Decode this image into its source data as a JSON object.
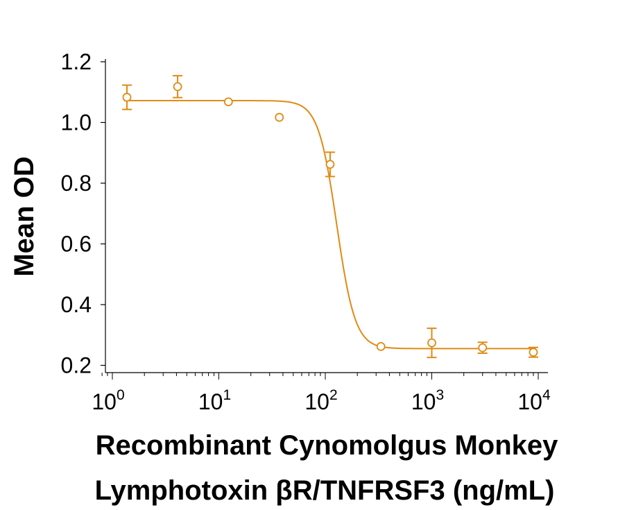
{
  "chart_data": {
    "type": "scatter",
    "xscale": "log",
    "xlim": [
      0.8,
      12000
    ],
    "ylim": [
      0.18,
      1.2
    ],
    "xticks": [
      1,
      10,
      100,
      1000,
      10000
    ],
    "xtick_labels": [
      {
        "base": "10",
        "exp": "0"
      },
      {
        "base": "10",
        "exp": "1"
      },
      {
        "base": "10",
        "exp": "2"
      },
      {
        "base": "10",
        "exp": "3"
      },
      {
        "base": "10",
        "exp": "4"
      }
    ],
    "yticks": [
      0.2,
      0.4,
      0.6,
      0.8,
      1.0,
      1.2
    ],
    "ytick_labels": [
      "0.2",
      "0.4",
      "0.6",
      "0.8",
      "1.0",
      "1.2"
    ],
    "ylabel": "Mean OD",
    "xlabel_line1": "Recombinant Cynomolgus Monkey",
    "xlabel_line2": "Lymphotoxin βR/TNFRSF3 (ng/mL)",
    "color": "#e08a12",
    "grid": false,
    "legend": "none",
    "series": [
      {
        "x": [
          1.37,
          4.1,
          12.3,
          37,
          111,
          333,
          1000,
          3000,
          9000
        ],
        "y": [
          1.083,
          1.118,
          1.068,
          1.017,
          0.862,
          0.262,
          0.274,
          0.258,
          0.243
        ],
        "err": [
          0.04,
          0.036,
          0.004,
          0.004,
          0.04,
          0.009,
          0.048,
          0.018,
          0.016
        ]
      }
    ],
    "fit": {
      "model": "4PL",
      "top": 1.072,
      "bottom": 0.255,
      "ec50": 128,
      "hill": 5.0
    }
  }
}
